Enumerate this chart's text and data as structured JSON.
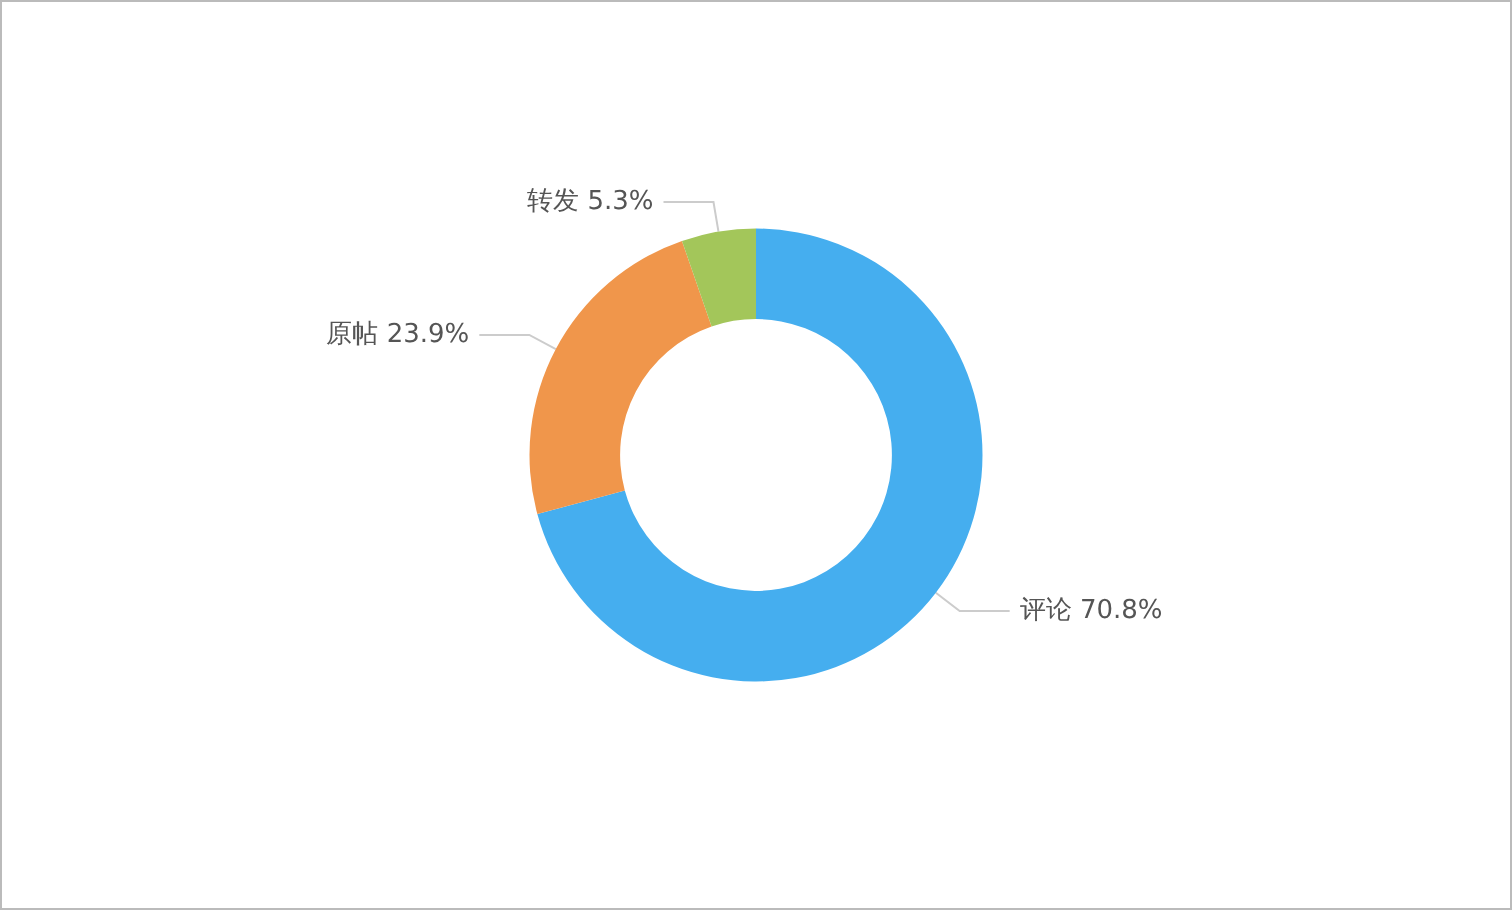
{
  "chart_data": {
    "type": "donut",
    "categories": [
      "评论",
      "原帖",
      "转发"
    ],
    "values": [
      70.8,
      23.9,
      5.3
    ],
    "value_labels": [
      "70.8%",
      "23.9%",
      "5.3%"
    ],
    "colors": [
      "#45aeef",
      "#f0964b",
      "#a3c65a"
    ],
    "legend": false
  }
}
